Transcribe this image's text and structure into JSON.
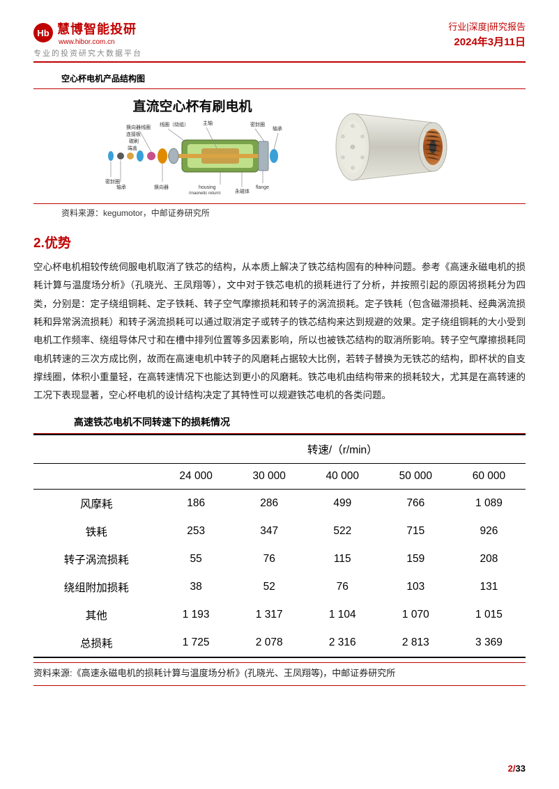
{
  "header": {
    "logo_initials": "Hb",
    "logo_text": "慧博智能投研",
    "logo_url": "www.hibor.com.cn",
    "logo_subtitle": "专业的投资研究大数据平台",
    "category_line": "行业|深度|研究报告",
    "date": "2024年3月11日"
  },
  "figure1": {
    "caption": "空心杯电机产品结构图",
    "diagram_title": "直流空心杯有刷电机",
    "labels": {
      "l1": "换向器线圈",
      "l2": "线圈（绕组）",
      "l3": "主轴",
      "l4": "密封圈",
      "l5": "轴承",
      "l6": "连接板",
      "l7": "碳刷",
      "l8": "端盖",
      "l9": "轴承",
      "l10": "换向器",
      "l11": "密封圈",
      "l12": "housing\n(magnetic return)",
      "l13": "flange",
      "l14": "永磁体"
    },
    "colors": {
      "shaft": "#d9a441",
      "housing": "#7aa34a",
      "core": "#c9a04a",
      "flange": "#a8b4bd",
      "ring": "#3aa0d8",
      "gear": "#e08a00",
      "cap": "#c94f8a",
      "motor_photo_body": "#d8d8d0",
      "motor_photo_coil": "#b86a2a"
    },
    "source": "资料来源：kegumotor，中邮证券研究所"
  },
  "section": {
    "heading": "2.优势",
    "body": "空心杯电机相较传统伺服电机取消了铁芯的结构，从本质上解决了铁芯结构固有的种种问题。参考《高速永磁电机的损耗计算与温度场分析》（孔晓光、王凤翔等），文中对于铁芯电机的损耗进行了分析，并按照引起的原因将损耗分为四类，分别是：定子绕组铜耗、定子铁耗、转子空气摩擦损耗和转子的涡流损耗。定子铁耗（包含磁滞损耗、经典涡流损耗和异常涡流损耗）和转子涡流损耗可以通过取消定子或转子的铁芯结构来达到规避的效果。定子绕组铜耗的大小受到电机工作频率、绕组导体尺寸和在槽中排列位置等多因素影响，所以也被铁芯结构的取消所影响。转子空气摩擦损耗同电机转速的三次方成比例，故而在高速电机中转子的风磨耗占据较大比例，若转子替换为无铁芯的结构，即杯状的自支撑线圈，体积小重量轻，在高转速情况下也能达到更小的风磨耗。铁芯电机由结构带来的损耗较大，尤其是在高转速的工况下表现显著，空心杯电机的设计结构决定了其特性可以规避铁芯电机的各类问题。"
  },
  "table": {
    "caption": "高速铁芯电机不同转速下的损耗情况",
    "header_group": "转速/（r/min）",
    "speeds": [
      "24 000",
      "30 000",
      "40 000",
      "50 000",
      "60 000"
    ],
    "rows": [
      {
        "label": "风摩耗",
        "vals": [
          "186",
          "286",
          "499",
          "766",
          "1 089"
        ]
      },
      {
        "label": "铁耗",
        "vals": [
          "253",
          "347",
          "522",
          "715",
          "926"
        ]
      },
      {
        "label": "转子涡流损耗",
        "vals": [
          "55",
          "76",
          "115",
          "159",
          "208"
        ]
      },
      {
        "label": "绕组附加损耗",
        "vals": [
          "38",
          "52",
          "76",
          "103",
          "131"
        ]
      },
      {
        "label": "其他",
        "vals": [
          "1 193",
          "1 317",
          "1 104",
          "1 070",
          "1 015"
        ]
      },
      {
        "label": "总损耗",
        "vals": [
          "1 725",
          "2 078",
          "2 316",
          "2 813",
          "3 369"
        ]
      }
    ],
    "source": "资料来源:《高速永磁电机的损耗计算与温度场分析》(孔晓光、王凤翔等)，中邮证券研究所"
  },
  "page": {
    "current": "2",
    "total": "33"
  },
  "colors": {
    "brand": "#c00000",
    "text": "#222222",
    "gray": "#888888"
  }
}
